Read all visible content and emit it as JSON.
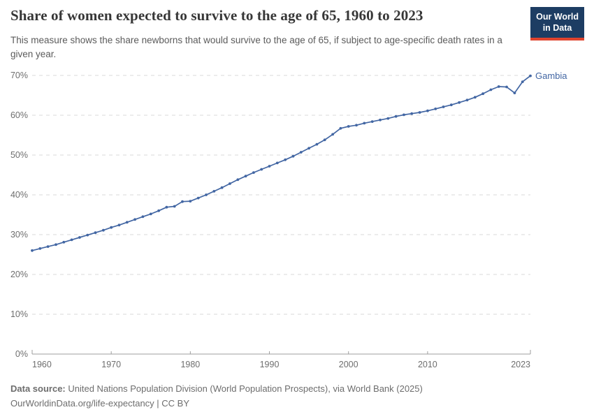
{
  "header": {
    "title": "Share of women expected to survive to the age of 65, 1960 to 2023",
    "subtitle": "This measure shows the share newborns that would survive to the age of 65, if subject to age-specific death rates in a given year.",
    "logo": {
      "line1": "Our World",
      "line2": "in Data",
      "bg_color": "#1d3d63",
      "accent_color": "#e0442e"
    }
  },
  "chart_data": {
    "type": "line",
    "title": "Share of women expected to survive to the age of 65, 1960 to 2023",
    "xlabel": "",
    "ylabel": "",
    "xlim": [
      1960,
      2023
    ],
    "ylim": [
      0,
      70
    ],
    "grid": "horizontal-dashed",
    "x_ticks": [
      1960,
      1970,
      1980,
      1990,
      2000,
      2010,
      2023
    ],
    "x_tick_labels": [
      "1960",
      "1970",
      "1980",
      "1990",
      "2000",
      "2010",
      "2023"
    ],
    "y_ticks": [
      0,
      10,
      20,
      30,
      40,
      50,
      60,
      70
    ],
    "y_tick_suffix": "%",
    "colors": {
      "line": "#4266a3",
      "gridline": "#dadada",
      "axis": "#9e9e9e",
      "tick_label": "#6e6e6e"
    },
    "series": [
      {
        "name": "Gambia",
        "label": "Gambia",
        "color": "#4266a3",
        "x": [
          1960,
          1961,
          1962,
          1963,
          1964,
          1965,
          1966,
          1967,
          1968,
          1969,
          1970,
          1971,
          1972,
          1973,
          1974,
          1975,
          1976,
          1977,
          1978,
          1979,
          1980,
          1981,
          1982,
          1983,
          1984,
          1985,
          1986,
          1987,
          1988,
          1989,
          1990,
          1991,
          1992,
          1993,
          1994,
          1995,
          1996,
          1997,
          1998,
          1999,
          2000,
          2001,
          2002,
          2003,
          2004,
          2005,
          2006,
          2007,
          2008,
          2009,
          2010,
          2011,
          2012,
          2013,
          2014,
          2015,
          2016,
          2017,
          2018,
          2019,
          2020,
          2021,
          2022,
          2023
        ],
        "values": [
          26.0,
          26.5,
          27.0,
          27.5,
          28.1,
          28.7,
          29.3,
          29.9,
          30.5,
          31.1,
          31.8,
          32.4,
          33.1,
          33.8,
          34.5,
          35.2,
          36.0,
          36.9,
          37.1,
          38.3,
          38.4,
          39.2,
          40.0,
          40.9,
          41.8,
          42.8,
          43.8,
          44.7,
          45.6,
          46.4,
          47.2,
          48.0,
          48.8,
          49.7,
          50.7,
          51.7,
          52.7,
          53.8,
          55.2,
          56.7,
          57.2,
          57.5,
          58.0,
          58.4,
          58.8,
          59.2,
          59.7,
          60.1,
          60.4,
          60.7,
          61.1,
          61.6,
          62.1,
          62.6,
          63.2,
          63.8,
          64.5,
          65.4,
          66.4,
          67.2,
          67.1,
          65.6,
          68.4,
          69.9
        ]
      }
    ],
    "legend_position": "end-of-line-label"
  },
  "footer": {
    "datasource_label": "Data source:",
    "datasource_text": " United Nations Population Division (World Population Prospects), via World Bank (2025)",
    "link_text": "OurWorldinData.org/life-expectancy | CC BY"
  }
}
